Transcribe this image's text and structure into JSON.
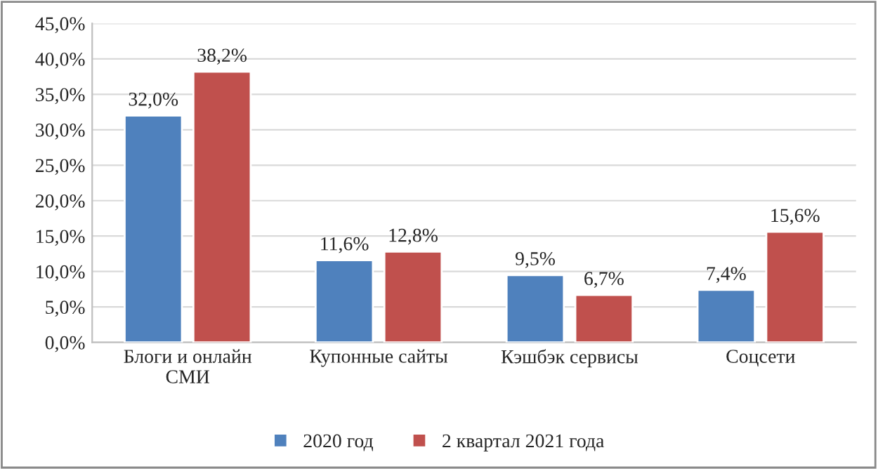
{
  "chart_data": {
    "type": "bar",
    "categories": [
      "Блоги и онлайн\nСМИ",
      "Купонные сайты",
      "Кэшбэк сервисы",
      "Соцсети"
    ],
    "series": [
      {
        "name": "2020 год",
        "color": "#4f81bd",
        "values": [
          32.0,
          11.6,
          9.5,
          7.4
        ],
        "value_labels": [
          "32,0%",
          "11,6%",
          "9,5%",
          "7,4%"
        ]
      },
      {
        "name": "2 квартал 2021 года",
        "color": "#c0504d",
        "values": [
          38.2,
          12.8,
          6.7,
          15.6
        ],
        "value_labels": [
          "38,2%",
          "12,8%",
          "6,7%",
          "15,6%"
        ]
      }
    ],
    "ylim": [
      0,
      45
    ],
    "yticks": [
      {
        "value": 0,
        "label": "0,0%"
      },
      {
        "value": 5,
        "label": "5,0%"
      },
      {
        "value": 10,
        "label": "10,0%"
      },
      {
        "value": 15,
        "label": "15,0%"
      },
      {
        "value": 20,
        "label": "20,0%"
      },
      {
        "value": 25,
        "label": "25,0%"
      },
      {
        "value": 30,
        "label": "30,0%"
      },
      {
        "value": 35,
        "label": "35,0%"
      },
      {
        "value": 40,
        "label": "40,0%"
      },
      {
        "value": 45,
        "label": "45,0%"
      }
    ],
    "grid": "y",
    "legend": "bottom"
  }
}
